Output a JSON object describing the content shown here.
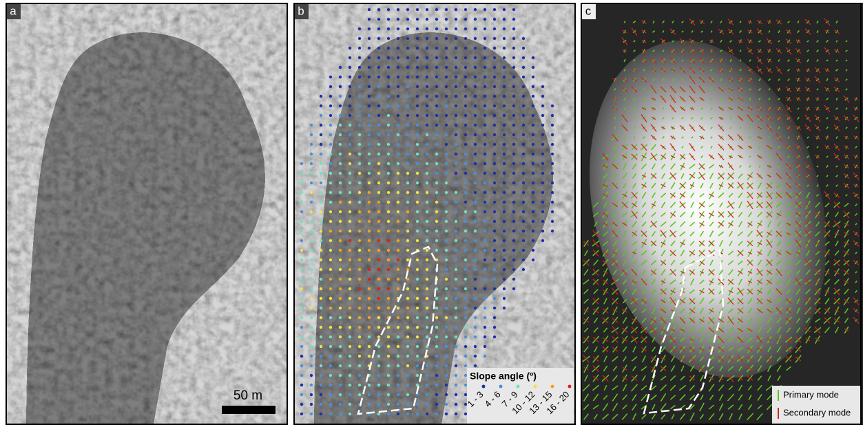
{
  "panels": [
    {
      "label": "a",
      "scale_bar": "50 m"
    },
    {
      "label": "b",
      "legend": {
        "title": "Slope angle (º)",
        "items": [
          {
            "label": "1 - 3",
            "color": "#1f2fa8"
          },
          {
            "label": "4 - 6",
            "color": "#4a90d9"
          },
          {
            "label": "7 - 9",
            "color": "#72e0c4"
          },
          {
            "label": "10 - 12",
            "color": "#eee348"
          },
          {
            "label": "13 - 15",
            "color": "#f0a323"
          },
          {
            "label": "16 - 20",
            "color": "#e0201e"
          }
        ]
      }
    },
    {
      "label": "c",
      "legend": {
        "items": [
          {
            "label": "Primary mode",
            "color": "#5cc41e"
          },
          {
            "label": "Secondary mode",
            "color": "#d4231e"
          }
        ]
      }
    }
  ]
}
